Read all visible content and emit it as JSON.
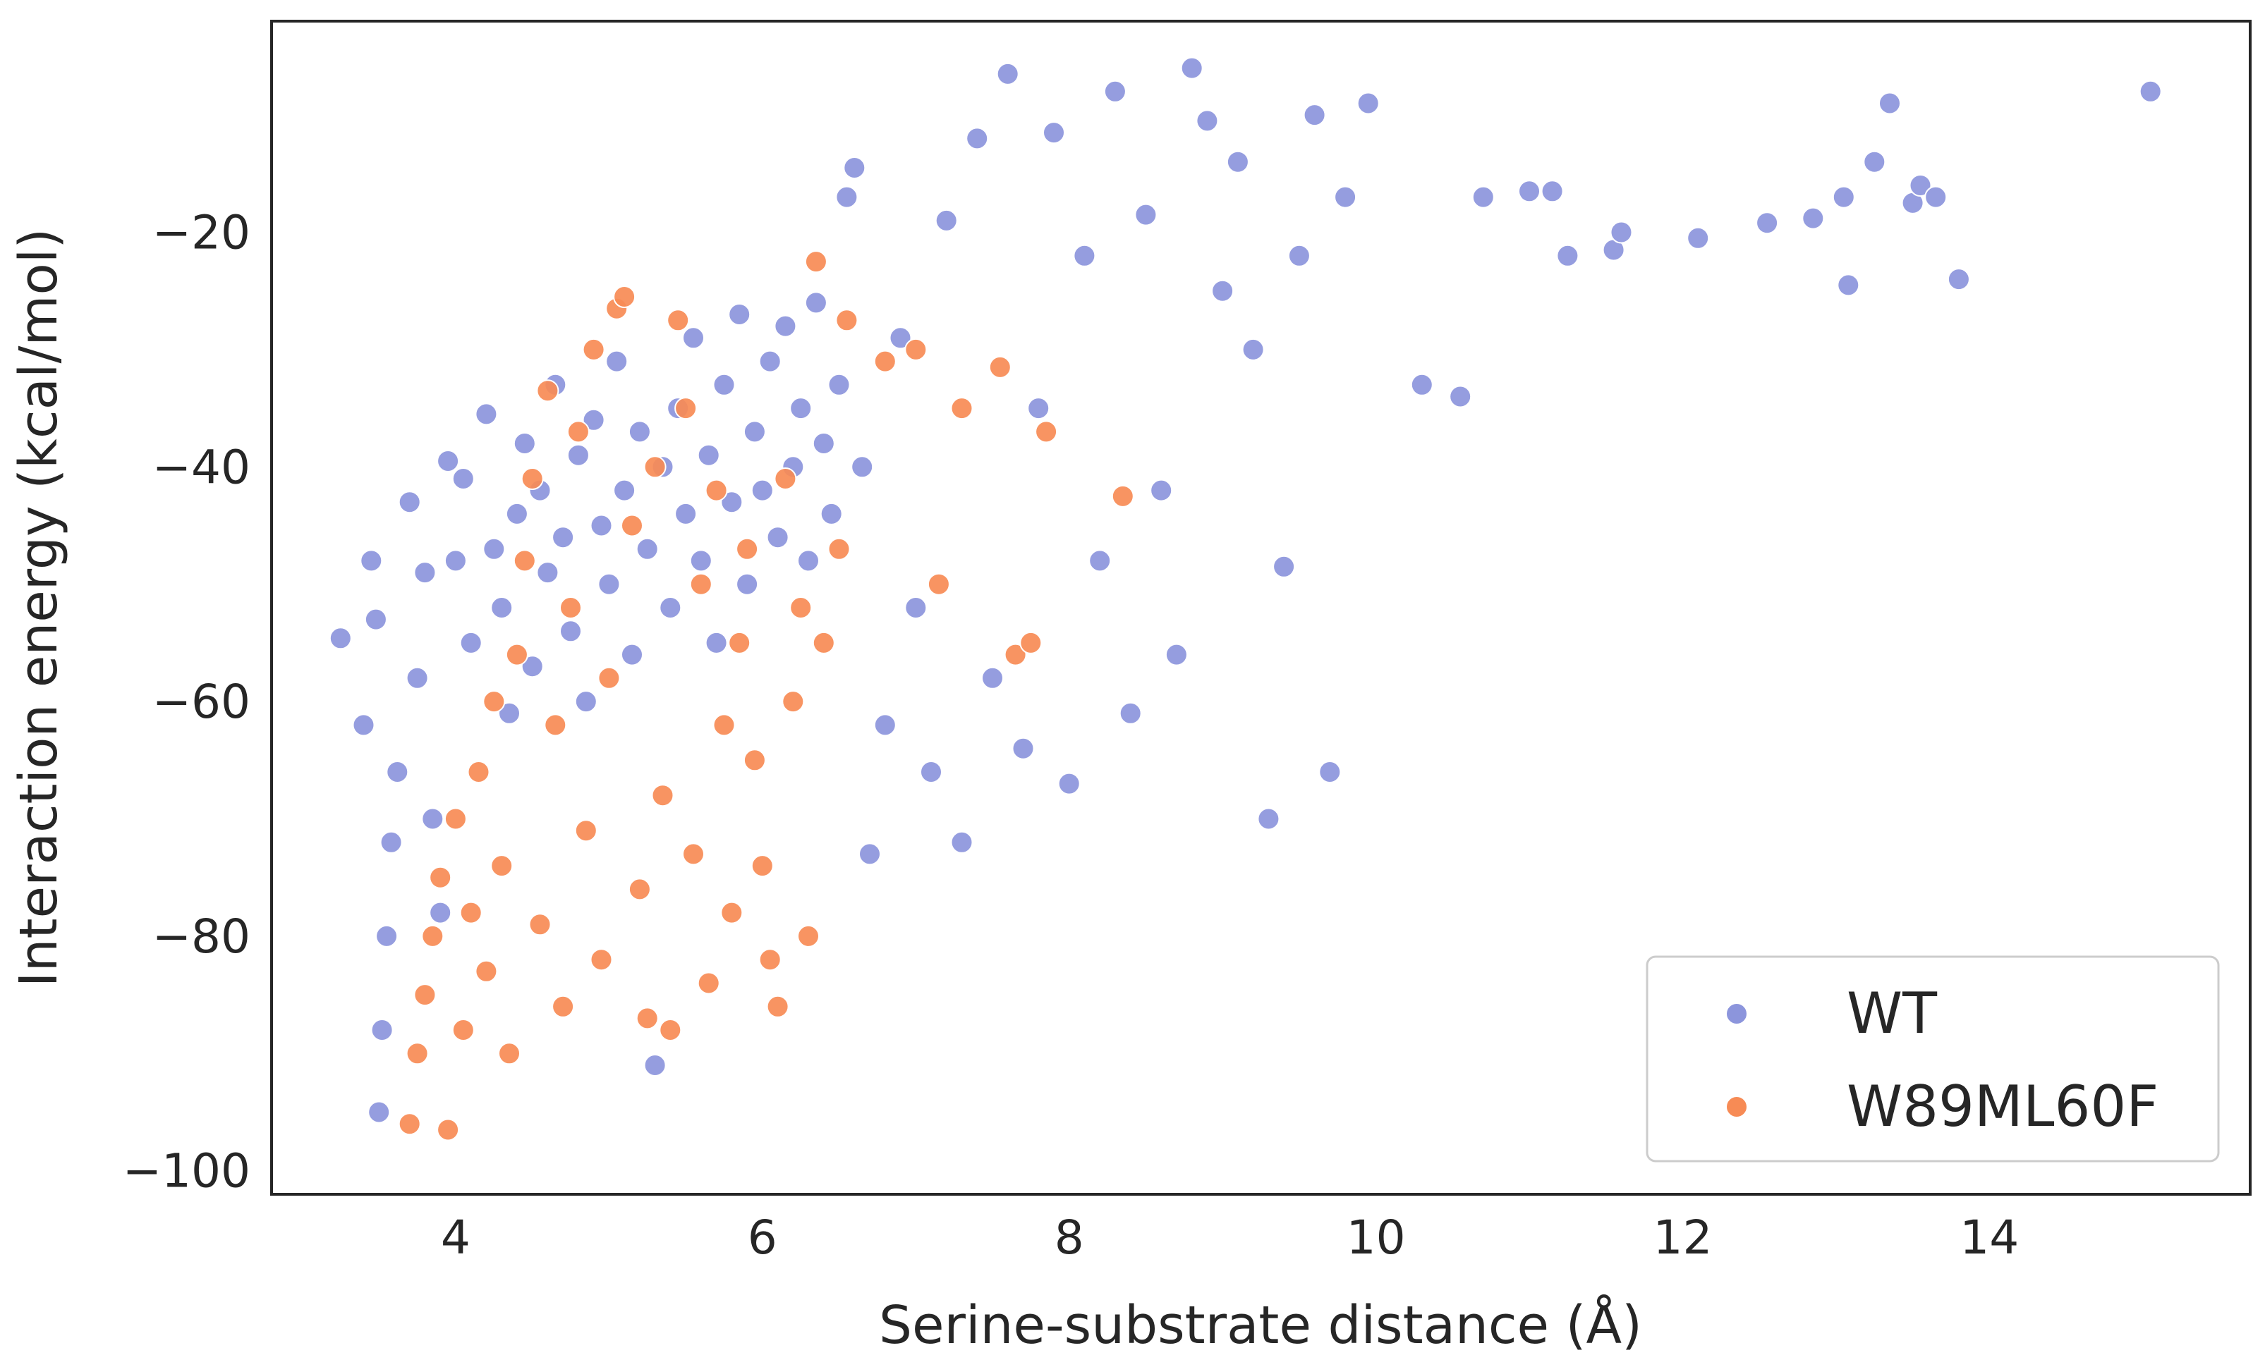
{
  "chart_data": {
    "type": "scatter",
    "title": "",
    "xlabel": "Serine-substrate distance (Å)",
    "ylabel": "Interaction energy (kcal/mol)",
    "xlim": [
      2.8,
      15.7
    ],
    "ylim": [
      -102,
      -2
    ],
    "x_ticks": [
      4,
      6,
      8,
      10,
      12,
      14
    ],
    "y_ticks": [
      -20,
      -40,
      -60,
      -80,
      -100
    ],
    "x_tick_labels": [
      "4",
      "6",
      "8",
      "10",
      "12",
      "14"
    ],
    "y_tick_labels": [
      "−20",
      "−40",
      "−60",
      "−80",
      "−100"
    ],
    "grid": false,
    "legend_position": "bottom-right",
    "series": [
      {
        "name": "WT",
        "color": "#8c95dc",
        "points": [
          [
            3.25,
            -54.6
          ],
          [
            3.4,
            -62
          ],
          [
            3.45,
            -48
          ],
          [
            3.48,
            -53
          ],
          [
            3.5,
            -95
          ],
          [
            3.52,
            -88
          ],
          [
            3.55,
            -80
          ],
          [
            3.58,
            -72
          ],
          [
            3.62,
            -66
          ],
          [
            3.7,
            -43
          ],
          [
            3.75,
            -58
          ],
          [
            3.8,
            -49
          ],
          [
            3.85,
            -70
          ],
          [
            3.9,
            -78
          ],
          [
            3.95,
            -39.5
          ],
          [
            4.0,
            -48
          ],
          [
            4.05,
            -41
          ],
          [
            4.1,
            -55
          ],
          [
            4.2,
            -35.5
          ],
          [
            4.25,
            -47
          ],
          [
            4.3,
            -52
          ],
          [
            4.35,
            -61
          ],
          [
            4.4,
            -44
          ],
          [
            4.45,
            -38
          ],
          [
            4.5,
            -57
          ],
          [
            4.55,
            -42
          ],
          [
            4.6,
            -49
          ],
          [
            4.65,
            -33
          ],
          [
            4.7,
            -46
          ],
          [
            4.75,
            -54
          ],
          [
            4.8,
            -39
          ],
          [
            4.85,
            -60
          ],
          [
            4.9,
            -36
          ],
          [
            4.95,
            -45
          ],
          [
            5.0,
            -50
          ],
          [
            5.05,
            -31
          ],
          [
            5.1,
            -42
          ],
          [
            5.15,
            -56
          ],
          [
            5.2,
            -37
          ],
          [
            5.25,
            -47
          ],
          [
            5.3,
            -91
          ],
          [
            5.35,
            -40
          ],
          [
            5.4,
            -52
          ],
          [
            5.45,
            -35
          ],
          [
            5.5,
            -44
          ],
          [
            5.55,
            -29
          ],
          [
            5.6,
            -48
          ],
          [
            5.65,
            -39
          ],
          [
            5.7,
            -55
          ],
          [
            5.75,
            -33
          ],
          [
            5.8,
            -43
          ],
          [
            5.85,
            -27
          ],
          [
            5.9,
            -50
          ],
          [
            5.95,
            -37
          ],
          [
            6.0,
            -42
          ],
          [
            6.05,
            -31
          ],
          [
            6.1,
            -46
          ],
          [
            6.15,
            -28
          ],
          [
            6.2,
            -40
          ],
          [
            6.25,
            -35
          ],
          [
            6.3,
            -48
          ],
          [
            6.35,
            -26
          ],
          [
            6.4,
            -38
          ],
          [
            6.45,
            -44
          ],
          [
            6.5,
            -33
          ],
          [
            6.55,
            -17
          ],
          [
            6.6,
            -14.5
          ],
          [
            6.65,
            -40
          ],
          [
            6.7,
            -73
          ],
          [
            6.8,
            -62
          ],
          [
            6.9,
            -29
          ],
          [
            7.0,
            -52
          ],
          [
            7.1,
            -66
          ],
          [
            7.2,
            -19
          ],
          [
            7.3,
            -72
          ],
          [
            7.4,
            -12
          ],
          [
            7.5,
            -58
          ],
          [
            7.6,
            -6.5
          ],
          [
            7.7,
            -64
          ],
          [
            7.8,
            -35
          ],
          [
            7.9,
            -11.5
          ],
          [
            8.0,
            -67
          ],
          [
            8.1,
            -22
          ],
          [
            8.2,
            -48
          ],
          [
            8.3,
            -8
          ],
          [
            8.4,
            -61
          ],
          [
            8.5,
            -18.5
          ],
          [
            8.6,
            -42
          ],
          [
            8.7,
            -56
          ],
          [
            8.8,
            -6
          ],
          [
            8.9,
            -10.5
          ],
          [
            9.0,
            -25
          ],
          [
            9.1,
            -14
          ],
          [
            9.2,
            -30
          ],
          [
            9.3,
            -70
          ],
          [
            9.4,
            -48.5
          ],
          [
            9.5,
            -22
          ],
          [
            9.6,
            -10
          ],
          [
            9.7,
            -66
          ],
          [
            9.8,
            -17
          ],
          [
            9.95,
            -9
          ],
          [
            10.3,
            -33
          ],
          [
            10.55,
            -34
          ],
          [
            10.7,
            -17
          ],
          [
            11.0,
            -16.5
          ],
          [
            11.15,
            -16.5
          ],
          [
            11.25,
            -22
          ],
          [
            11.55,
            -21.5
          ],
          [
            11.6,
            -20
          ],
          [
            12.1,
            -20.5
          ],
          [
            12.55,
            -19.2
          ],
          [
            12.85,
            -18.8
          ],
          [
            13.05,
            -17
          ],
          [
            13.08,
            -24.5
          ],
          [
            13.25,
            -14
          ],
          [
            13.35,
            -9
          ],
          [
            13.5,
            -17.5
          ],
          [
            13.55,
            -16
          ],
          [
            13.65,
            -17
          ],
          [
            13.8,
            -24
          ],
          [
            15.05,
            -8
          ]
        ]
      },
      {
        "name": "W89ML60F",
        "color": "#f78b55",
        "points": [
          [
            3.7,
            -96
          ],
          [
            3.75,
            -90
          ],
          [
            3.8,
            -85
          ],
          [
            3.85,
            -80
          ],
          [
            3.9,
            -75
          ],
          [
            3.95,
            -96.5
          ],
          [
            4.0,
            -70
          ],
          [
            4.05,
            -88
          ],
          [
            4.1,
            -78
          ],
          [
            4.15,
            -66
          ],
          [
            4.2,
            -83
          ],
          [
            4.25,
            -60
          ],
          [
            4.3,
            -74
          ],
          [
            4.35,
            -90
          ],
          [
            4.4,
            -56
          ],
          [
            4.45,
            -48
          ],
          [
            4.5,
            -41
          ],
          [
            4.55,
            -79
          ],
          [
            4.6,
            -33.5
          ],
          [
            4.65,
            -62
          ],
          [
            4.7,
            -86
          ],
          [
            4.75,
            -52
          ],
          [
            4.8,
            -37
          ],
          [
            4.85,
            -71
          ],
          [
            4.9,
            -30
          ],
          [
            4.95,
            -82
          ],
          [
            5.0,
            -58
          ],
          [
            5.05,
            -26.5
          ],
          [
            5.1,
            -25.5
          ],
          [
            5.15,
            -45
          ],
          [
            5.2,
            -76
          ],
          [
            5.25,
            -87
          ],
          [
            5.3,
            -40
          ],
          [
            5.35,
            -68
          ],
          [
            5.4,
            -88
          ],
          [
            5.45,
            -27.5
          ],
          [
            5.5,
            -35
          ],
          [
            5.55,
            -73
          ],
          [
            5.6,
            -50
          ],
          [
            5.65,
            -84
          ],
          [
            5.7,
            -42
          ],
          [
            5.75,
            -62
          ],
          [
            5.8,
            -78
          ],
          [
            5.85,
            -55
          ],
          [
            5.9,
            -47
          ],
          [
            5.95,
            -65
          ],
          [
            6.0,
            -74
          ],
          [
            6.05,
            -82
          ],
          [
            6.1,
            -86
          ],
          [
            6.15,
            -41
          ],
          [
            6.2,
            -60
          ],
          [
            6.25,
            -52
          ],
          [
            6.3,
            -80
          ],
          [
            6.35,
            -22.5
          ],
          [
            6.4,
            -55
          ],
          [
            6.5,
            -47
          ],
          [
            6.55,
            -27.5
          ],
          [
            6.8,
            -31
          ],
          [
            7.0,
            -30
          ],
          [
            7.15,
            -50
          ],
          [
            7.3,
            -35
          ],
          [
            7.55,
            -31.5
          ],
          [
            7.65,
            -56
          ],
          [
            7.75,
            -55
          ],
          [
            7.85,
            -37
          ],
          [
            8.35,
            -42.5
          ]
        ]
      }
    ]
  }
}
